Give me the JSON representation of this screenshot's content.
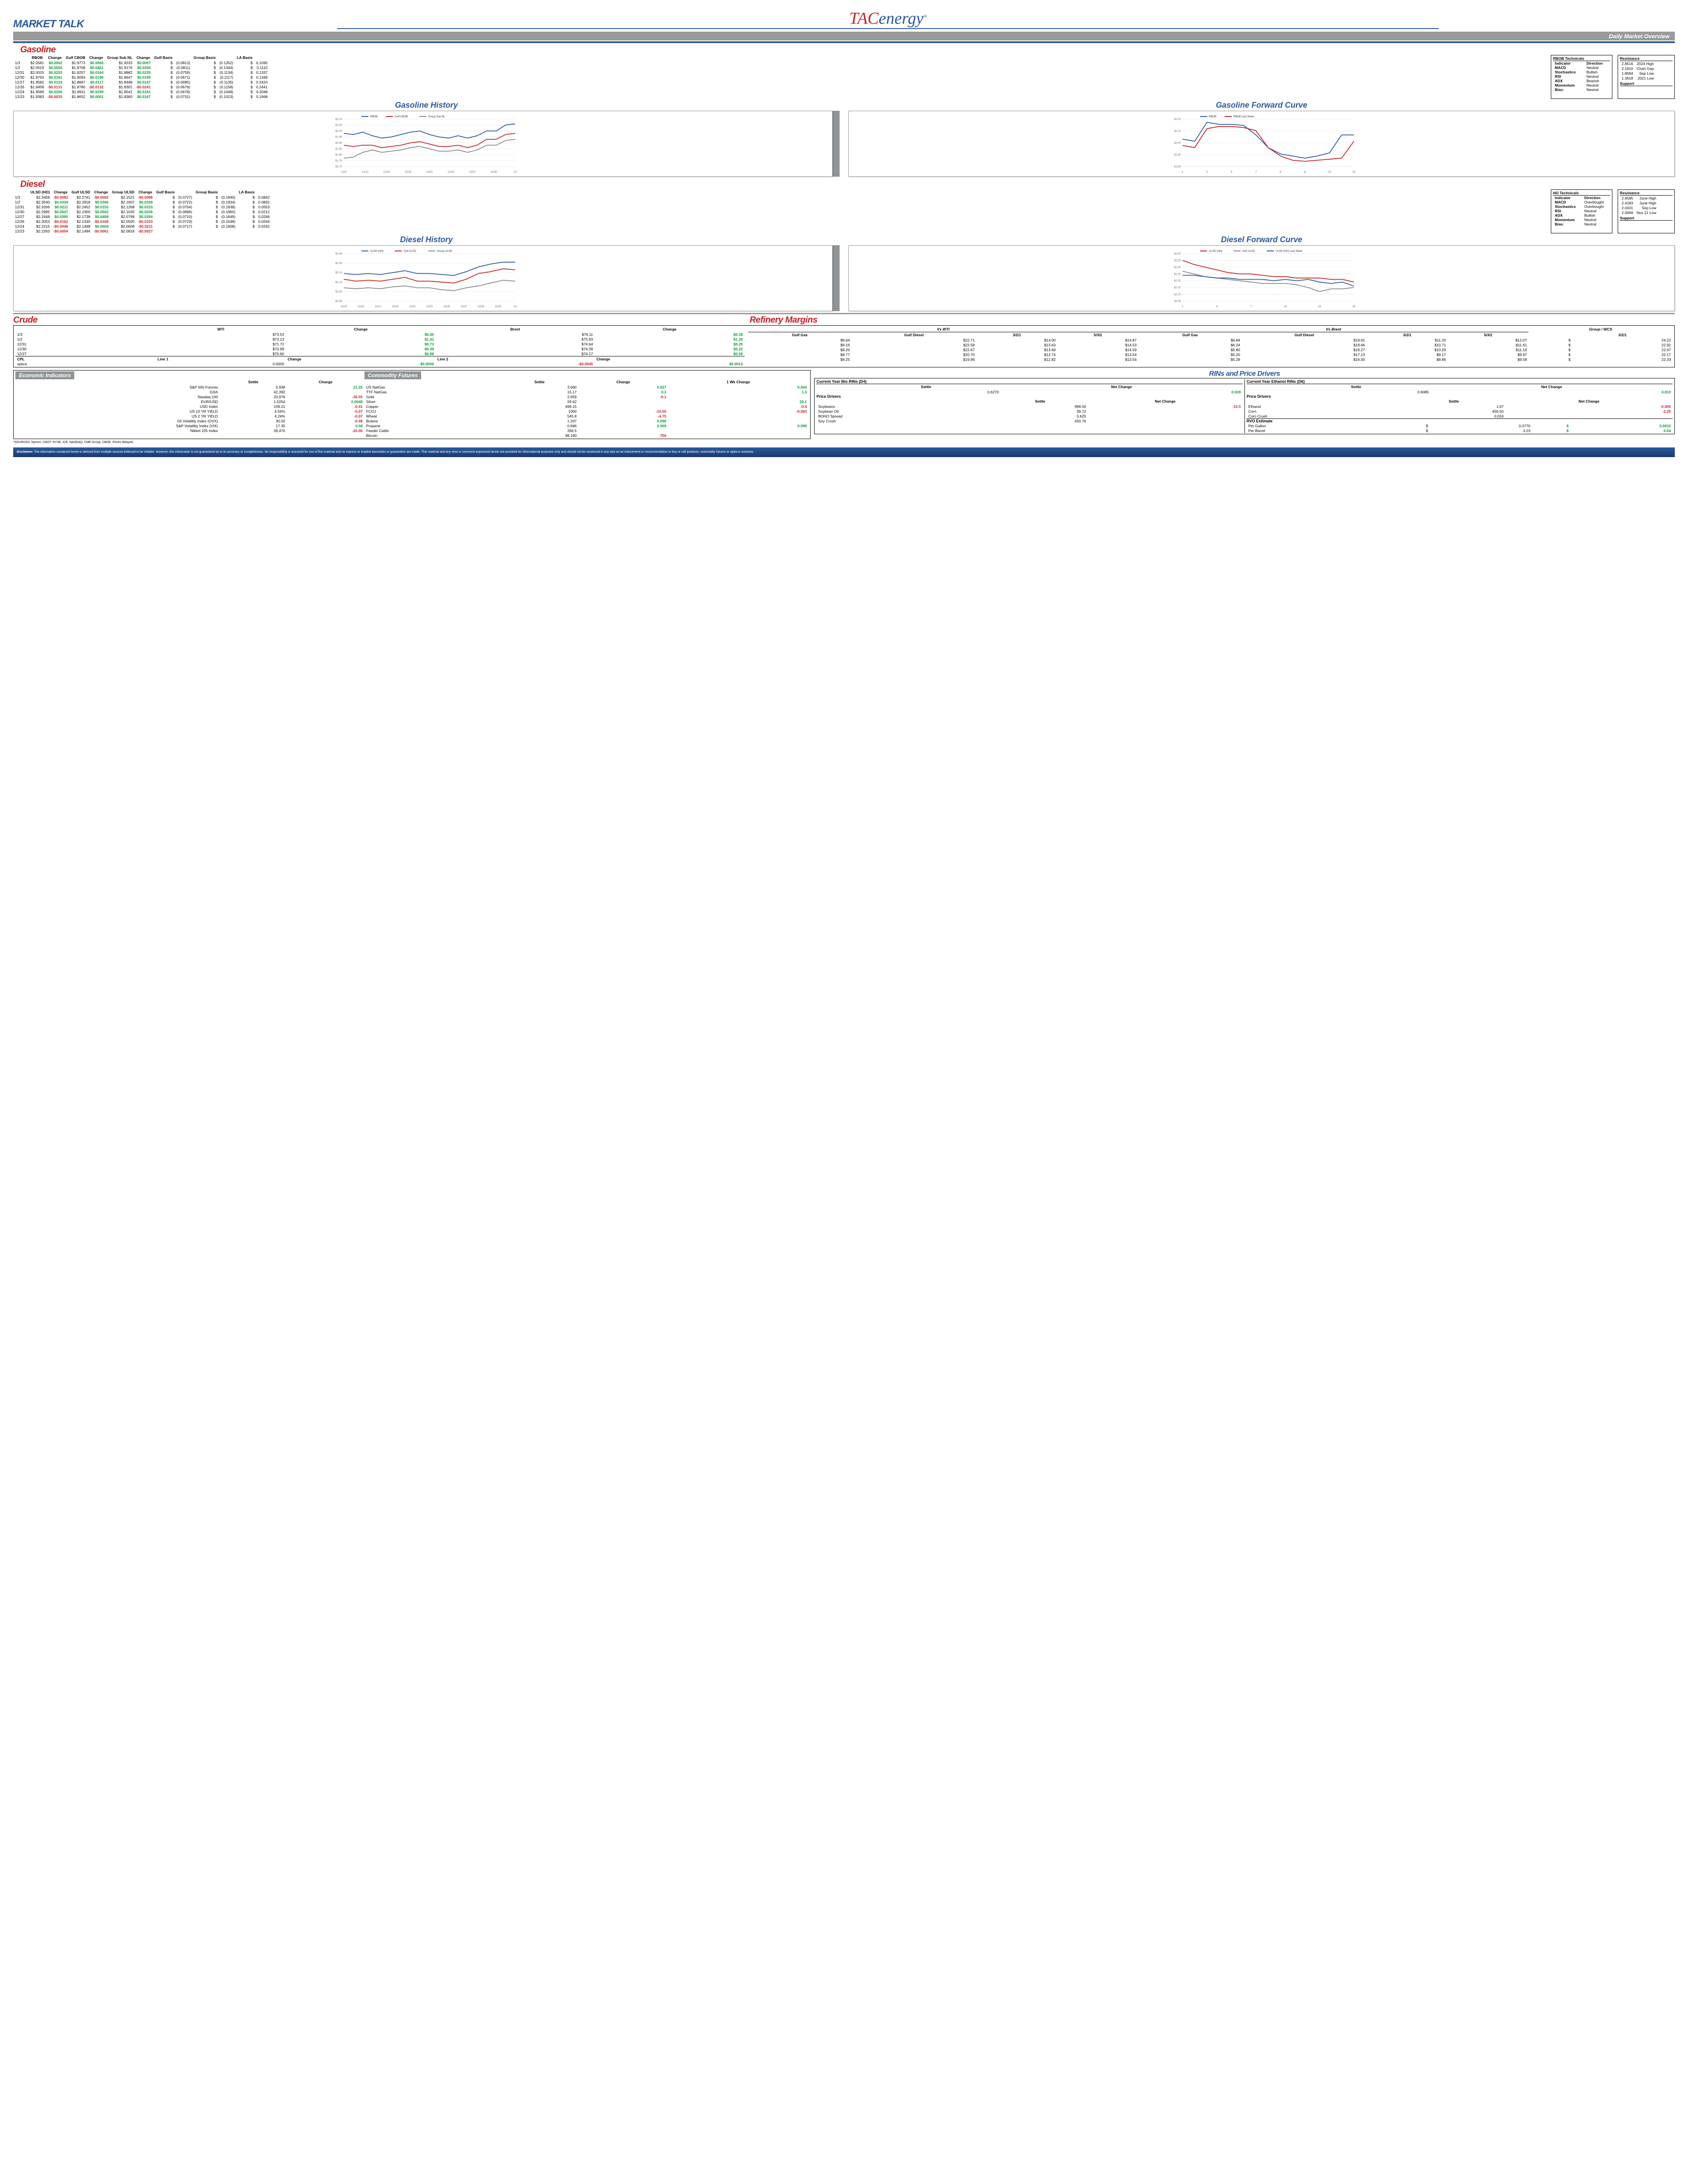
{
  "header": {
    "market_talk": "MARKET TALK",
    "tac": "TAC",
    "energy": "energy",
    "reg": "®",
    "subtitle": "Daily Market Overview"
  },
  "gasoline": {
    "title": "Gasoline",
    "cols": [
      "",
      "RBOB",
      "Change",
      "Gulf CBOB",
      "Change",
      "Group Sub NL",
      "Change",
      "Gulf Basis",
      "",
      "Group Basis",
      "",
      "LA Basis"
    ],
    "rows": [
      [
        "1/3",
        "$2.0581",
        "$0.0062",
        "$1.9773",
        "$0.0065",
        "$1.9233",
        "$0.0057",
        "$",
        "(0.0813)",
        "$",
        "(0.1352)",
        "$",
        "0.1095"
      ],
      [
        "1/2",
        "$2.0519",
        "$0.0504",
        "$1.9708",
        "$0.0451",
        "$1.9176",
        "$0.0294",
        "$",
        "(0.0811)",
        "$",
        "(0.1344)",
        "$",
        "0.1110"
      ],
      [
        "12/31",
        "$2.0015",
        "$0.0252",
        "$1.9257",
        "$0.0164",
        "$1.8882",
        "$0.0235",
        "$",
        "(0.0759)",
        "$",
        "(0.1134)",
        "$",
        "0.1337"
      ],
      [
        "12/30",
        "$1.9763",
        "$0.0181",
        "$1.9093",
        "$0.0196",
        "$1.8647",
        "$0.0199",
        "$",
        "(0.0671)",
        "$",
        "(0.1117)",
        "$",
        "0.1349"
      ],
      [
        "12/27",
        "$1.9582",
        "$0.0124",
        "$1.8897",
        "$0.0117",
        "$1.8448",
        "$0.0147",
        "$",
        "(0.0685)",
        "$",
        "(0.1135)",
        "$",
        "0.2424"
      ],
      [
        "12/26",
        "$1.9458",
        "-$0.0131",
        "$1.8780",
        "-$0.0132",
        "$1.8301",
        "-$0.0241",
        "$",
        "(0.0679)",
        "$",
        "(0.1158)",
        "$",
        "0.2441"
      ],
      [
        "12/24",
        "$1.9589",
        "$0.0206",
        "$1.8911",
        "$0.0259",
        "$1.8541",
        "$0.0181",
        "$",
        "(0.0678)",
        "$",
        "(0.1048)",
        "$",
        "0.2048"
      ],
      [
        "12/23",
        "$1.9383",
        "-$0.0033",
        "$1.8652",
        "$0.0001",
        "$1.8360",
        "$0.0167",
        "$",
        "(0.0731)",
        "$",
        "(0.1023)",
        "$",
        "0.1668"
      ]
    ],
    "tech_title": "RBOB Technicals",
    "tech_cols": [
      "Indicator",
      "Direction"
    ],
    "tech": [
      [
        "MACD",
        "Neutral"
      ],
      [
        "Stochastics",
        "Bullish"
      ],
      [
        "RSI",
        "Neutral"
      ],
      [
        "ADX",
        "Bearish"
      ],
      [
        "Momentum",
        "Neutral"
      ],
      [
        "Bias:",
        "Neutral"
      ]
    ],
    "res_title": "Resistance",
    "res": [
      [
        "2.8516",
        "2024 High"
      ],
      [
        "2.1810",
        "Chart Gap"
      ],
      [
        "1.8584",
        "Sep Low"
      ],
      [
        "1.3618",
        "2021 Low"
      ]
    ],
    "sup_title": "Support",
    "history_title": "Gasoline History",
    "forward_title": "Gasoline Forward Curve",
    "history": {
      "legend": [
        "RBOB",
        "Gulf CBOB",
        "Group Sub NL"
      ],
      "colors": [
        "#2a5a9e",
        "#c52127",
        "#888888"
      ],
      "xlabels": [
        "12/9",
        "12/12",
        "12/15",
        "12/18",
        "12/21",
        "12/24",
        "12/27",
        "12/30",
        "1/2"
      ],
      "ylabels": [
        "$1.70",
        "$1.75",
        "$1.80",
        "$1.85",
        "$1.90",
        "$1.95",
        "$2.00",
        "$2.05",
        "$2.10"
      ],
      "ymin": 1.7,
      "ymax": 2.1,
      "series": [
        [
          1.98,
          1.97,
          1.99,
          1.96,
          1.94,
          1.95,
          1.97,
          1.99,
          2.0,
          1.97,
          1.95,
          1.94,
          1.96,
          1.94,
          1.96,
          2.0,
          2.0,
          2.05,
          2.06
        ],
        [
          1.88,
          1.87,
          1.88,
          1.88,
          1.86,
          1.87,
          1.88,
          1.9,
          1.91,
          1.89,
          1.87,
          1.87,
          1.88,
          1.86,
          1.88,
          1.93,
          1.93,
          1.97,
          1.98
        ],
        [
          1.77,
          1.78,
          1.82,
          1.84,
          1.82,
          1.83,
          1.84,
          1.86,
          1.87,
          1.85,
          1.83,
          1.83,
          1.84,
          1.82,
          1.84,
          1.88,
          1.88,
          1.92,
          1.93
        ]
      ]
    },
    "forward": {
      "legend": [
        "RBOB",
        "RBOB Last Week"
      ],
      "colors": [
        "#2a5a9e",
        "#c52127"
      ],
      "xlabels": [
        "1",
        "3",
        "5",
        "7",
        "9",
        "11",
        "13",
        "15"
      ],
      "ylabels": [
        "$1.80",
        "$1.90",
        "$2.00",
        "$2.10",
        "$2.20"
      ],
      "ymin": 1.8,
      "ymax": 2.25,
      "series": [
        [
          2.06,
          2.04,
          2.22,
          2.2,
          2.2,
          2.19,
          2.1,
          1.98,
          1.92,
          1.9,
          1.88,
          1.9,
          1.93,
          2.1,
          2.1
        ],
        [
          2.0,
          1.98,
          2.16,
          2.18,
          2.18,
          2.17,
          2.14,
          1.98,
          1.9,
          1.86,
          1.85,
          1.86,
          1.87,
          1.88,
          2.04
        ]
      ]
    }
  },
  "diesel": {
    "title": "Diesel",
    "cols": [
      "",
      "ULSD (HO)",
      "Change",
      "Gulf ULSD",
      "Change",
      "Group ULSD",
      "Change",
      "Gulf Basis",
      "",
      "Group Basis",
      "",
      "LA Basis"
    ],
    "rows": [
      [
        "1/3",
        "$2.3458",
        "-$0.0082",
        "$2.2741",
        "-$0.0082",
        "$2.1521",
        "-$0.0086",
        "$",
        "(0.0727)",
        "$",
        "(0.1940)",
        "$",
        "0.0842"
      ],
      [
        "1/2",
        "$2.3540",
        "$0.0334",
        "$2.2818",
        "$0.0366",
        "$2.1607",
        "$0.0339",
        "$",
        "(0.0722)",
        "$",
        "(0.1934)",
        "$",
        "0.0832"
      ],
      [
        "12/31",
        "$2.3206",
        "$0.0211",
        "$2.2452",
        "$0.0153",
        "$2.1268",
        "$0.0233",
        "$",
        "(0.0754)",
        "$",
        "(0.1938)",
        "$",
        "0.0553"
      ],
      [
        "12/30",
        "$2.2995",
        "$0.0547",
        "$2.2300",
        "$0.0562",
        "$2.1035",
        "$0.0236",
        "$",
        "(0.0696)",
        "$",
        "(0.1960)",
        "$",
        "0.0212"
      ],
      [
        "12/27",
        "$2.2448",
        "$0.0395",
        "$2.1738",
        "$0.0408",
        "$2.0799",
        "$0.0294",
        "$",
        "(0.0710)",
        "$",
        "(0.1649)",
        "$",
        "0.0246"
      ],
      [
        "12/26",
        "$2.2053",
        "-$0.0162",
        "$2.1330",
        "-$0.0168",
        "$2.0505",
        "-$0.0103",
        "$",
        "(0.0723)",
        "$",
        "(0.1548)",
        "$",
        "0.0244"
      ],
      [
        "12/24",
        "$2.2215",
        "-$0.0048",
        "$2.1498",
        "$0.0004",
        "$2.0608",
        "-$0.0211",
        "$",
        "(0.0717)",
        "$",
        "(0.1608)",
        "$",
        "0.0242"
      ],
      [
        "12/23",
        "$2.2263",
        "-$0.0054",
        "$2.1494",
        "-$0.0061",
        "$2.0818",
        "-$0.0027",
        "",
        "",
        "",
        "",
        "",
        ""
      ]
    ],
    "tech_title": "HO Technicals",
    "tech": [
      [
        "MACD",
        "Overbought"
      ],
      [
        "Stochastics",
        "Overbought"
      ],
      [
        "RSI",
        "Neutral"
      ],
      [
        "ADX",
        "Bullish"
      ],
      [
        "Momentum",
        "Neutral"
      ],
      [
        "Bias:",
        "Neutral"
      ]
    ],
    "res_title": "Resistance",
    "res": [
      [
        "2.6595",
        "June High"
      ],
      [
        "2.4183",
        "June High"
      ],
      [
        "2.0431",
        "Sep Low"
      ],
      [
        "2.0069",
        "Nov 21 Low"
      ]
    ],
    "sup_title": "Support",
    "history_title": "Diesel History",
    "forward_title": "Diesel Forward Curve",
    "history": {
      "legend": [
        "ULSD (HO)",
        "Gulf ULSD",
        "Group ULSD"
      ],
      "colors": [
        "#2a5a9e",
        "#c52127",
        "#888888"
      ],
      "xlabels": [
        "12/13",
        "12/15",
        "12/17",
        "12/19",
        "12/21",
        "12/23",
        "12/25",
        "12/27",
        "12/29",
        "12/31",
        "1/2"
      ],
      "ylabels": [
        "$1.94",
        "$2.04",
        "$2.14",
        "$2.24",
        "$2.34",
        "$2.44"
      ],
      "ymin": 1.94,
      "ymax": 2.44,
      "series": [
        [
          2.23,
          2.22,
          2.23,
          2.22,
          2.24,
          2.26,
          2.23,
          2.23,
          2.22,
          2.21,
          2.25,
          2.3,
          2.33,
          2.35,
          2.35
        ],
        [
          2.17,
          2.15,
          2.16,
          2.15,
          2.17,
          2.19,
          2.15,
          2.15,
          2.14,
          2.13,
          2.17,
          2.23,
          2.25,
          2.28,
          2.27
        ],
        [
          2.08,
          2.07,
          2.08,
          2.07,
          2.09,
          2.1,
          2.08,
          2.08,
          2.06,
          2.05,
          2.08,
          2.1,
          2.13,
          2.16,
          2.15
        ]
      ]
    },
    "forward": {
      "legend": [
        "ULSD (HO)",
        "Gulf ULSD",
        "ULSD (HO) Last Week"
      ],
      "colors": [
        "#c52127",
        "#888888",
        "#2a5a9e"
      ],
      "xlabels": [
        "1",
        "4",
        "7",
        "10",
        "13",
        "16"
      ],
      "ylabels": [
        "$2.05",
        "$2.10",
        "$2.15",
        "$2.20",
        "$2.25",
        "$2.30",
        "$2.35",
        "$2.40"
      ],
      "ymin": 2.05,
      "ymax": 2.4,
      "series": [
        [
          2.35,
          2.32,
          2.3,
          2.28,
          2.26,
          2.25,
          2.25,
          2.24,
          2.23,
          2.23,
          2.22,
          2.22,
          2.22,
          2.21,
          2.21,
          2.19
        ],
        [
          2.27,
          2.25,
          2.23,
          2.22,
          2.21,
          2.2,
          2.19,
          2.18,
          2.18,
          2.18,
          2.17,
          2.15,
          2.12,
          2.14,
          2.14,
          2.15
        ],
        [
          2.24,
          2.24,
          2.23,
          2.22,
          2.22,
          2.21,
          2.21,
          2.21,
          2.2,
          2.21,
          2.2,
          2.21,
          2.19,
          2.18,
          2.19,
          2.16
        ]
      ]
    }
  },
  "crude": {
    "title": "Crude",
    "cols": [
      "",
      "WTI",
      "Change",
      "Brent",
      "Change"
    ],
    "rows": [
      [
        "1/3",
        "$73.53",
        "$0.40",
        "$76.11",
        "$0.18"
      ],
      [
        "1/2",
        "$73.13",
        "$1.41",
        "$75.93",
        "$1.29"
      ],
      [
        "12/31",
        "$71.72",
        "$0.73",
        "$74.64",
        "$0.25"
      ],
      [
        "12/30",
        "$70.99",
        "$0.39",
        "$74.39",
        "$0.22"
      ],
      [
        "12/27",
        "$70.60",
        "$0.98",
        "$74.17",
        "$0.59"
      ]
    ],
    "cpl": [
      "CPL",
      "Line 1",
      "Change",
      "Line 2",
      "Change"
    ],
    "cpl_row": [
      "space",
      "0.0000",
      "$0.0000",
      "-$0.0045",
      "$0.0012"
    ]
  },
  "ref": {
    "title": "Refinery Margins",
    "h1": "Vs WTI",
    "h2": "Vs Brent",
    "h3": "Group / WCS",
    "cols": [
      "Gulf Gas",
      "Gulf Diesel",
      "3/2/1",
      "5/3/2",
      "Gulf Gas",
      "Gulf Diesel",
      "3/2/1",
      "5/3/2",
      "",
      "3/2/1"
    ],
    "rows": [
      [
        "$9.64",
        "$22.71",
        "$14.00",
        "$14.87",
        "$6.84",
        "$19.91",
        "$11.20",
        "$12.07",
        "$",
        "24.22"
      ],
      [
        "$9.16",
        "$22.58",
        "$13.63",
        "$14.53",
        "$6.24",
        "$19.66",
        "$10.71",
        "$11.61",
        "$",
        "22.92"
      ],
      [
        "$9.20",
        "$22.67",
        "$13.69",
        "$14.59",
        "$5.80",
        "$19.27",
        "$10.29",
        "$11.19",
        "$",
        "22.67"
      ],
      [
        "$8.77",
        "$20.70",
        "$12.74",
        "$13.54",
        "$5.20",
        "$17.13",
        "$9.17",
        "$9.97",
        "$",
        "22.17"
      ],
      [
        "$9.25",
        "$19.96",
        "$12.82",
        "$13.54",
        "$5.29",
        "$16.00",
        "$8.86",
        "$9.58",
        "$",
        "22.33"
      ]
    ]
  },
  "econ": {
    "title": "Economic Indicators",
    "cols": [
      "",
      "Settle",
      "Change"
    ],
    "rows": [
      [
        "S&P 500 Futures",
        "5,938",
        "21.25",
        "pos"
      ],
      [
        "DJIA",
        "42,392",
        "",
        ""
      ],
      [
        "Nasdaq 100",
        "20,976",
        "-36.55",
        "neg"
      ],
      [
        "EUR/USD",
        "1.0254",
        "0.0048",
        "pos"
      ],
      [
        "USD Index",
        "109.21",
        "-0.41",
        "neg"
      ],
      [
        "US 10 YR YIELD",
        "4.55%",
        "-0.07",
        "neg"
      ],
      [
        "US 2 YR YIELD",
        "4.24%",
        "-0.07",
        "neg"
      ],
      [
        "Oil Volatility Index (OVX)",
        "30.02",
        "-0.48",
        "neg"
      ],
      [
        "S&P Volatility Index (VIX)",
        "17.35",
        "0.58",
        "pos"
      ],
      [
        "Nikkei 225 Index",
        "39,470",
        "-20.00",
        "neg"
      ]
    ]
  },
  "comm": {
    "title": "Commodity Futures",
    "cols": [
      "",
      "Settle",
      "Change",
      "1 Wk Change"
    ],
    "rows": [
      [
        "US NatGas",
        "3.660",
        "0.027",
        "0.004",
        "pos",
        "pos"
      ],
      [
        "TTF NatGas",
        "15.17",
        "0.3",
        "1.3",
        "pos",
        "pos"
      ],
      [
        "Gold",
        "2,659",
        "-9.1",
        "",
        "neg",
        ""
      ],
      [
        "Silver",
        "29.62",
        "",
        "20.1",
        "",
        "pos"
      ],
      [
        "Copper",
        "499.15",
        "",
        "-0.4",
        "",
        "neg"
      ],
      [
        "FCOJ",
        "1000",
        "-10.50",
        "-0.083",
        "neg",
        "neg"
      ],
      [
        "Wheat",
        "545.8",
        "-4.75",
        "",
        "neg",
        ""
      ],
      [
        "Butane",
        "1.207",
        "0.096",
        "",
        "pos",
        ""
      ],
      [
        "Propane",
        "0.846",
        "0.069",
        "0.099",
        "pos",
        "pos"
      ],
      [
        "Feeder Cattle",
        "266.5",
        "",
        "",
        "",
        ""
      ],
      [
        "Bitcoin",
        "98,190",
        "-750",
        "",
        "neg",
        ""
      ]
    ]
  },
  "rin": {
    "title": "RINs and Price Drivers",
    "d4_title": "Current Year Bio RINs (D4)",
    "d6_title": "Current Year Ethanol RINs (D6)",
    "d4": [
      "",
      "0.6270",
      "0.028"
    ],
    "d6": [
      "",
      "0.6085",
      "0.010"
    ],
    "pd_title": "Price Drivers",
    "left": [
      [
        "Soybeans",
        "999.50",
        "-10.5",
        "neg"
      ],
      [
        "Soybean Oil",
        "39.72",
        "",
        ""
      ],
      [
        "BOHO Spread",
        "0.625",
        "",
        ""
      ],
      [
        "Soy Crush",
        "433.76",
        "",
        ""
      ]
    ],
    "right": [
      [
        "Ethanol",
        "1.67",
        "-0.005",
        "neg"
      ],
      [
        "Corn",
        "459.50",
        "-2.25",
        "neg"
      ],
      [
        "Corn Crush",
        "0.024",
        "",
        ""
      ]
    ],
    "rvo": "RVO Estimate",
    "rvo_rows": [
      [
        "Per Gallon",
        "$",
        "0.0770",
        "$",
        "0.0010"
      ],
      [
        "Per Barrel",
        "$",
        "3.23",
        "$",
        "0.04"
      ]
    ]
  },
  "sources": "*SOURCES: Nymex, CBOT, NYSE, ICE, NASDAQ, CME Group, CBOE.   Prices delayed.",
  "disclaimer_label": "Disclaimer:",
  "disclaimer": "The information contained herein is derived from multiple sources believed to be reliable. However, this information is not guaranteed as to its accuracy or completeness. No responsibility is assumed for use of this material and no express or implied warranties or guarantees are made. This material and any view or comment expressed herein are provided for informational purposes only and should not be construed in any way as an inducement or recommendation to buy or sell products, commodity futures or options contracts.",
  "tech_col_hdr": [
    "Indicator",
    "Direction"
  ],
  "settle_hdr": "Settle",
  "netchg_hdr": "Net Change"
}
